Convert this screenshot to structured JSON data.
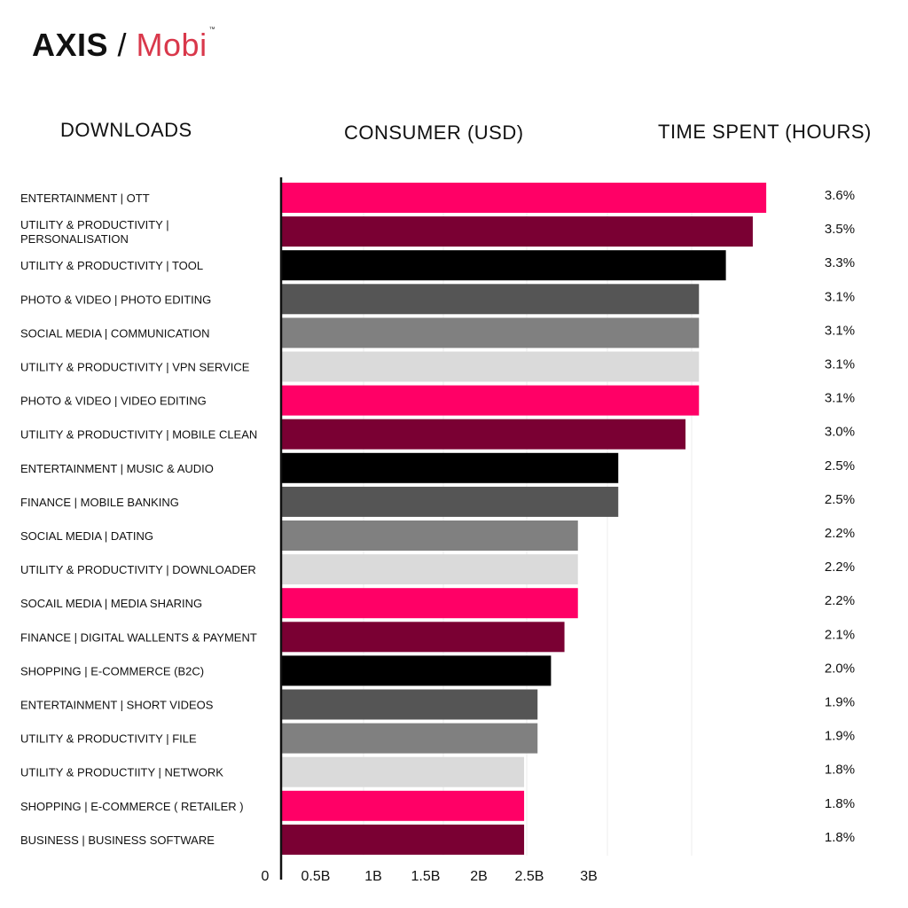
{
  "logo": {
    "part1": "AXIS",
    "separator": " / ",
    "part2": "Mobi",
    "tm": "™"
  },
  "headers": {
    "left": "DOWNLOADS",
    "middle": "CONSUMER (USD)",
    "right": "TIME SPENT (HOURS)"
  },
  "colors": {
    "pink": "#ff0066",
    "maroon": "#7a0033",
    "black": "#000000",
    "dark_gray": "#555555",
    "gray": "#808080",
    "light_gray": "#dadada",
    "logo_accent": "#d9384b"
  },
  "chart_data": {
    "type": "bar",
    "orientation": "horizontal",
    "categories": [
      [
        "ENTERTAINMENT | OTT"
      ],
      [
        "UTILITY & PRODUCTIVITY |",
        "PERSONALISATION"
      ],
      [
        "UTILITY & PRODUCTIVITY | TOOL"
      ],
      [
        "PHOTO & VIDEO | PHOTO EDITING"
      ],
      [
        "SOCIAL MEDIA | COMMUNICATION"
      ],
      [
        "UTILITY & PRODUCTIVITY | VPN SERVICE"
      ],
      [
        "PHOTO & VIDEO | VIDEO EDITING"
      ],
      [
        "UTILITY & PRODUCTIVITY | MOBILE CLEAN"
      ],
      [
        "ENTERTAINMENT | MUSIC & AUDIO"
      ],
      [
        "FINANCE | MOBILE BANKING"
      ],
      [
        "SOCIAL MEDIA | DATING"
      ],
      [
        "UTILITY & PRODUCTIVITY | DOWNLOADER"
      ],
      [
        "SOCAIL MEDIA | MEDIA SHARING"
      ],
      [
        "FINANCE | DIGITAL WALLENTS & PAYMENT"
      ],
      [
        "SHOPPING | E-COMMERCE (B2C)"
      ],
      [
        "ENTERTAINMENT | SHORT VIDEOS"
      ],
      [
        "UTILITY & PRODUCTIVITY | FILE"
      ],
      [
        "UTILITY & PRODUCTIITY | NETWORK"
      ],
      [
        "SHOPPING | E-COMMERCE ( RETAILER )"
      ],
      [
        "BUSINESS | BUSINESS SOFTWARE"
      ]
    ],
    "values": [
      3.6,
      3.5,
      3.3,
      3.1,
      3.1,
      3.1,
      3.1,
      3.0,
      2.5,
      2.5,
      2.2,
      2.2,
      2.2,
      2.1,
      2.0,
      1.9,
      1.9,
      1.8,
      1.8,
      1.8
    ],
    "value_labels": [
      "3.6%",
      "3.5%",
      "3.3%",
      "3.1%",
      "3.1%",
      "3.1%",
      "3.1%",
      "3.0%",
      "2.5%",
      "2.5%",
      "2.2%",
      "2.2%",
      "2.2%",
      "2.1%",
      "2.0%",
      "1.9%",
      "1.9%",
      "1.8%",
      "1.8%",
      "1.8%"
    ],
    "bar_colors": [
      "pink",
      "maroon",
      "black",
      "dark_gray",
      "gray",
      "light_gray",
      "pink",
      "maroon",
      "black",
      "dark_gray",
      "gray",
      "light_gray",
      "pink",
      "maroon",
      "black",
      "dark_gray",
      "gray",
      "light_gray",
      "pink",
      "maroon"
    ],
    "x_ticks": [
      "0",
      "0.5B",
      "1B",
      "1.5B",
      "2B",
      "2.5B",
      "3B"
    ],
    "grid": true
  }
}
